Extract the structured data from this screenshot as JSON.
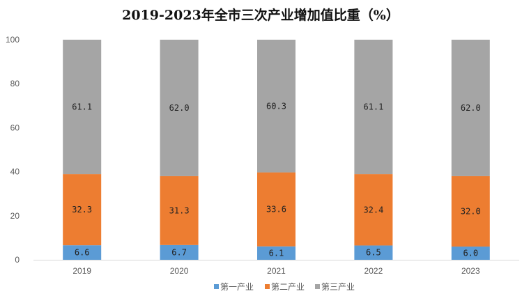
{
  "chart_data": {
    "type": "bar",
    "stacked": true,
    "title": "2019-2023年全市三次产业增加值比重（%）",
    "categories": [
      "2019",
      "2020",
      "2021",
      "2022",
      "2023"
    ],
    "series": [
      {
        "name": "第一产业",
        "color": "#5B9BD5",
        "values": [
          6.6,
          6.7,
          6.1,
          6.5,
          6.0
        ],
        "labels": [
          "6.6",
          "6.7",
          "6.1",
          "6.5",
          "6.0"
        ]
      },
      {
        "name": "第二产业",
        "color": "#ED7D31",
        "values": [
          32.3,
          31.3,
          33.6,
          32.4,
          32.0
        ],
        "labels": [
          "32.3",
          "31.3",
          "33.6",
          "32.4",
          "32.0"
        ]
      },
      {
        "name": "第三产业",
        "color": "#A5A5A5",
        "values": [
          61.1,
          62.0,
          60.3,
          61.1,
          62.0
        ],
        "labels": [
          "61.1",
          "62.0",
          "60.3",
          "61.1",
          "62.0"
        ]
      }
    ],
    "yticks": [
      "0",
      "20",
      "40",
      "60",
      "80",
      "100"
    ],
    "ylim": [
      0,
      100
    ],
    "grid": false,
    "legend_position": "bottom"
  }
}
